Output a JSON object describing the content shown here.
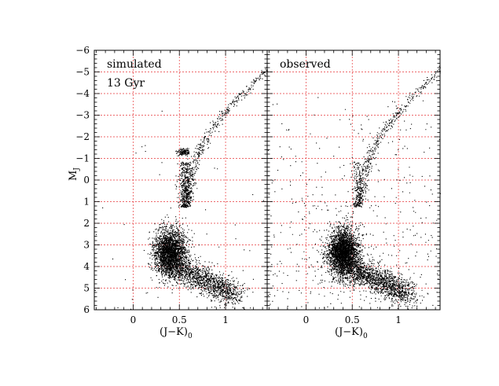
{
  "chart_data": [
    {
      "type": "scatter",
      "panel_label": "simulated",
      "annotation": "13 Gyr",
      "xlabel_main": "(J−K)",
      "xlabel_sub": "0",
      "ylabel_main": "M",
      "ylabel_sub": "J",
      "xlim": [
        -0.42,
        1.45
      ],
      "ylim": [
        6,
        -6
      ],
      "xticks": [
        0,
        0.5,
        1
      ],
      "xtick_labels": [
        "0",
        "0.5",
        "1"
      ],
      "yticks": [
        -6,
        -5,
        -4,
        -3,
        -2,
        -1,
        0,
        1,
        2,
        3,
        4,
        5,
        6
      ],
      "ytick_labels": [
        "−6",
        "−5",
        "−4",
        "−3",
        "−2",
        "−1",
        "0",
        "1",
        "2",
        "3",
        "4",
        "5",
        "6"
      ],
      "grid": true,
      "grid_color": "#e8393b",
      "point_color": "#000000",
      "features": [
        {
          "part": "main-sequence-turnoff",
          "x": [
            0.2,
            0.6
          ],
          "y": [
            2.4,
            4.2
          ],
          "density": "very high"
        },
        {
          "part": "lower-main-sequence",
          "x": [
            0.45,
            1.2
          ],
          "y": [
            4.0,
            5.6
          ],
          "density": "high"
        },
        {
          "part": "red-giant-branch",
          "x": [
            0.48,
            1.12
          ],
          "y": [
            1.2,
            -5.5
          ],
          "density": "medium"
        },
        {
          "part": "red-clump",
          "x": [
            0.47,
            0.64
          ],
          "y": [
            -1.1,
            1.2
          ],
          "density": "high"
        },
        {
          "part": "horizontal-branch",
          "x": [
            0.45,
            0.63
          ],
          "y": [
            -1.45,
            -1.1
          ],
          "density": "high"
        }
      ]
    },
    {
      "type": "scatter",
      "panel_label": "observed",
      "xlabel_main": "(J−K)",
      "xlabel_sub": "0",
      "xlim": [
        -0.42,
        1.45
      ],
      "ylim": [
        6,
        -6
      ],
      "xticks": [
        0,
        0.5,
        1
      ],
      "xtick_labels": [
        "0",
        "0.5",
        "1"
      ],
      "yticks": [
        -6,
        -5,
        -4,
        -3,
        -2,
        -1,
        0,
        1,
        2,
        3,
        4,
        5,
        6
      ],
      "grid": true,
      "grid_color": "#e8393b",
      "point_color": "#000000",
      "features": [
        {
          "part": "main-sequence-turnoff",
          "x": [
            0.15,
            0.65
          ],
          "y": [
            2.0,
            4.5
          ],
          "density": "very high"
        },
        {
          "part": "lower-main-sequence",
          "x": [
            0.4,
            1.3
          ],
          "y": [
            4.0,
            5.8
          ],
          "density": "high"
        },
        {
          "part": "red-giant-branch",
          "x": [
            0.45,
            1.1
          ],
          "y": [
            1.5,
            -5.2
          ],
          "density": "medium"
        },
        {
          "part": "field-stars",
          "x": [
            -0.4,
            1.4
          ],
          "y": [
            -4,
            6
          ],
          "density": "low"
        }
      ]
    }
  ]
}
